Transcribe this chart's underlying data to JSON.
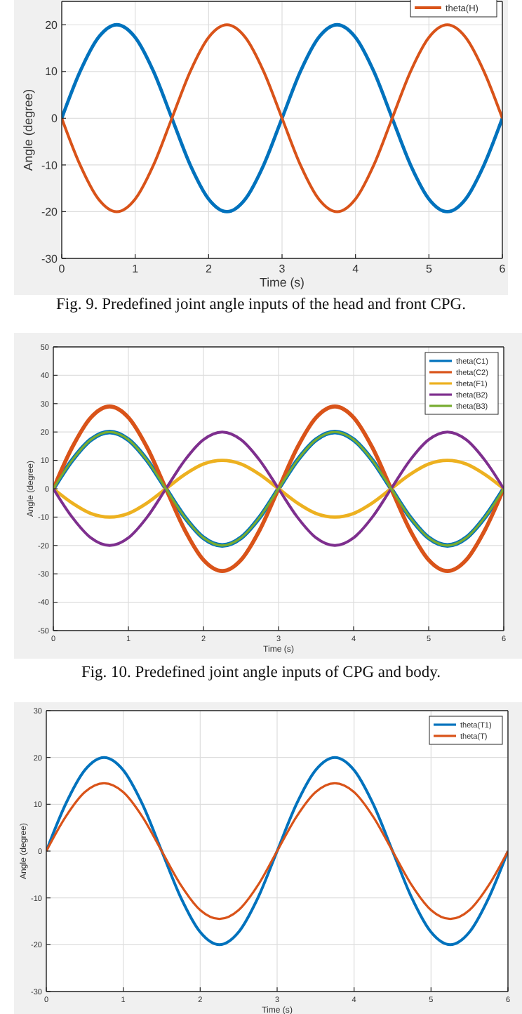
{
  "chart_data": [
    {
      "type": "line",
      "xlabel": "Time (s)",
      "ylabel": "Angle (degree)",
      "annotations": [
        "Fig. 9. Predefined joint angle inputs of the head and front CPG."
      ],
      "xlim": [
        0,
        6
      ],
      "xticks": [
        0,
        1,
        2,
        3,
        4,
        5,
        6
      ],
      "ylim": [
        -30,
        25
      ],
      "yticks": [
        -30,
        -20,
        -10,
        0,
        10,
        20
      ],
      "grid": true,
      "legend": "top right",
      "x": [
        0,
        0.25,
        0.5,
        0.75,
        1,
        1.25,
        1.5,
        1.75,
        2,
        2.25,
        2.5,
        2.75,
        3,
        3.25,
        3.5,
        3.75,
        4,
        4.25,
        4.5,
        4.75,
        5,
        5.25,
        5.5,
        5.75,
        6
      ],
      "series": [
        {
          "color": "#0072bd",
          "values": [
            0,
            10,
            17.3,
            20,
            17.3,
            10,
            0,
            -10,
            -17.3,
            -20,
            -17.3,
            -10,
            0,
            10,
            17.3,
            20,
            17.3,
            10,
            0,
            -10,
            -17.3,
            -20,
            -17.3,
            -10,
            0
          ]
        },
        {
          "name": "theta(H)",
          "color": "#d95319",
          "values": [
            0,
            -10,
            -17.3,
            -20,
            -17.3,
            -10,
            0,
            10,
            17.3,
            20,
            17.3,
            10,
            0,
            -10,
            -17.3,
            -20,
            -17.3,
            -10,
            0,
            10,
            17.3,
            20,
            17.3,
            10,
            0
          ]
        }
      ]
    },
    {
      "type": "line",
      "xlabel": "Time (s)",
      "ylabel": "Angle (degree)",
      "annotations": [
        "Fig. 10. Predefined joint angle inputs of CPG and body."
      ],
      "xlim": [
        0,
        6
      ],
      "xticks": [
        0,
        1,
        2,
        3,
        4,
        5,
        6
      ],
      "ylim": [
        -50,
        50
      ],
      "yticks": [
        -50,
        -40,
        -30,
        -20,
        -10,
        0,
        10,
        20,
        30,
        40,
        50
      ],
      "grid": true,
      "legend": "top right",
      "x": [
        0,
        0.25,
        0.5,
        0.75,
        1,
        1.25,
        1.5,
        1.75,
        2,
        2.25,
        2.5,
        2.75,
        3,
        3.25,
        3.5,
        3.75,
        4,
        4.25,
        4.5,
        4.75,
        5,
        5.25,
        5.5,
        5.75,
        6
      ],
      "series": [
        {
          "name": "theta(C1)",
          "color": "#0072bd",
          "values": [
            0,
            10,
            17.3,
            20,
            17.3,
            10,
            0,
            -10,
            -17.3,
            -20,
            -17.3,
            -10,
            0,
            10,
            17.3,
            20,
            17.3,
            10,
            0,
            -10,
            -17.3,
            -20,
            -17.3,
            -10,
            0
          ]
        },
        {
          "name": "theta(C2)",
          "color": "#d95319",
          "values": [
            0,
            14.5,
            25.1,
            29,
            25.1,
            14.5,
            0,
            -14.5,
            -25.1,
            -29,
            -25.1,
            -14.5,
            0,
            14.5,
            25.1,
            29,
            25.1,
            14.5,
            0,
            -14.5,
            -25.1,
            -29,
            -25.1,
            -14.5,
            0
          ]
        },
        {
          "name": "theta(F1)",
          "color": "#edb120",
          "values": [
            0,
            -5,
            -8.7,
            -10,
            -8.7,
            -5,
            0,
            5,
            8.7,
            10,
            8.7,
            5,
            0,
            -5,
            -8.7,
            -10,
            -8.7,
            -5,
            0,
            5,
            8.7,
            10,
            8.7,
            5,
            0
          ]
        },
        {
          "name": "theta(B2)",
          "color": "#7e2f8e",
          "values": [
            0,
            -10,
            -17.3,
            -20,
            -17.3,
            -10,
            0,
            10,
            17.3,
            20,
            17.3,
            10,
            0,
            -10,
            -17.3,
            -20,
            -17.3,
            -10,
            0,
            10,
            17.3,
            20,
            17.3,
            10,
            0
          ]
        },
        {
          "name": "theta(B3)",
          "color": "#77ac30",
          "values": [
            0,
            10,
            17.3,
            20,
            17.3,
            10,
            0,
            -10,
            -17.3,
            -20,
            -17.3,
            -10,
            0,
            10,
            17.3,
            20,
            17.3,
            10,
            0,
            -10,
            -17.3,
            -20,
            -17.3,
            -10,
            0
          ]
        }
      ]
    },
    {
      "type": "line",
      "xlabel": "Time (s)",
      "ylabel": "Angle (degree)",
      "xlim": [
        0,
        6
      ],
      "xticks": [
        0,
        1,
        2,
        3,
        4,
        5,
        6
      ],
      "ylim": [
        -30,
        30
      ],
      "yticks": [
        -30,
        -20,
        -10,
        0,
        10,
        20,
        30
      ],
      "grid": true,
      "legend": "top right",
      "x": [
        0,
        0.25,
        0.5,
        0.75,
        1,
        1.25,
        1.5,
        1.75,
        2,
        2.25,
        2.5,
        2.75,
        3,
        3.25,
        3.5,
        3.75,
        4,
        4.25,
        4.5,
        4.75,
        5,
        5.25,
        5.5,
        5.75,
        6
      ],
      "series": [
        {
          "name": "theta(T1)",
          "color": "#0072bd",
          "values": [
            0,
            10,
            17.3,
            20,
            17.3,
            10,
            0,
            -10,
            -17.3,
            -20,
            -17.3,
            -10,
            0,
            10,
            17.3,
            20,
            17.3,
            10,
            0,
            -10,
            -17.3,
            -20,
            -17.3,
            -10,
            0
          ]
        },
        {
          "name": "theta(T)",
          "color": "#d95319",
          "values": [
            0,
            7.3,
            12.6,
            14.5,
            12.6,
            7.3,
            0,
            -7.3,
            -12.6,
            -14.5,
            -12.6,
            -7.3,
            0,
            7.3,
            12.6,
            14.5,
            12.6,
            7.3,
            0,
            -7.3,
            -12.6,
            -14.5,
            -12.6,
            -7.3,
            0
          ]
        }
      ]
    }
  ]
}
